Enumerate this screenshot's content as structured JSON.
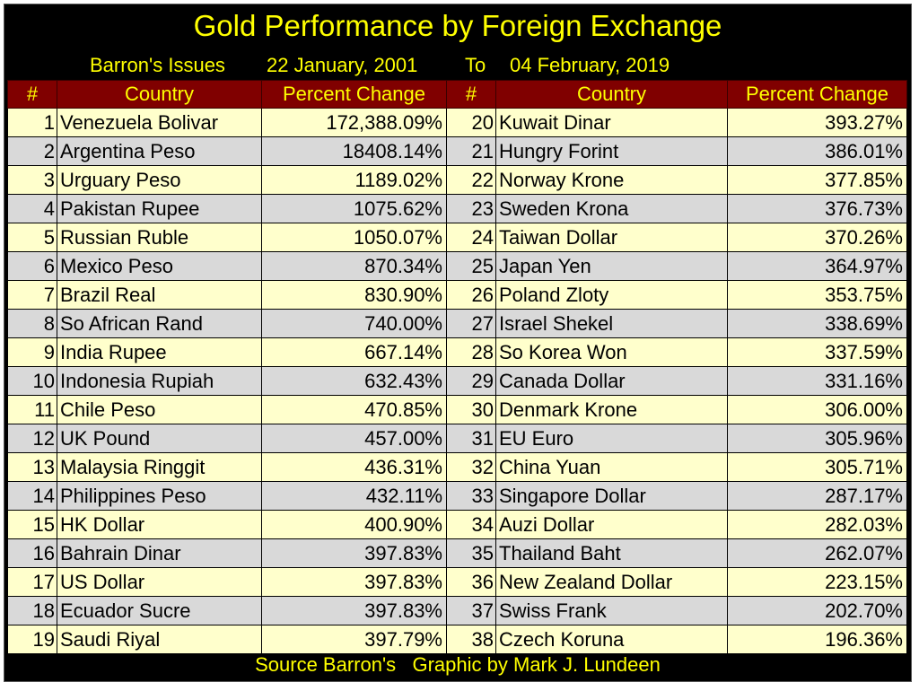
{
  "colors": {
    "background": "#000000",
    "title_text": "#ffff00",
    "header_bg": "#800000",
    "row_odd": "#ffffcc",
    "row_even": "#d9d9d9"
  },
  "chart_data": {
    "type": "table",
    "title": "Gold Performance by Foreign Exchange",
    "subtitle": {
      "prefix": "Barron's Issues",
      "start_date": "22 January, 2001",
      "to": "To",
      "end_date": "04 February, 2019"
    },
    "columns": [
      "#",
      "Country",
      "Percent Change",
      "#",
      "Country",
      "Percent Change"
    ],
    "left_rows": [
      {
        "rank": "1",
        "country": "Venezuela Bolivar",
        "change": "172,388.09%"
      },
      {
        "rank": "2",
        "country": "Argentina Peso",
        "change": "18408.14%"
      },
      {
        "rank": "3",
        "country": "Urguary Peso",
        "change": "1189.02%"
      },
      {
        "rank": "4",
        "country": "Pakistan Rupee",
        "change": "1075.62%"
      },
      {
        "rank": "5",
        "country": "Russian Ruble",
        "change": "1050.07%"
      },
      {
        "rank": "6",
        "country": "Mexico Peso",
        "change": "870.34%"
      },
      {
        "rank": "7",
        "country": "Brazil Real",
        "change": "830.90%"
      },
      {
        "rank": "8",
        "country": "So African Rand",
        "change": "740.00%"
      },
      {
        "rank": "9",
        "country": "India Rupee",
        "change": "667.14%"
      },
      {
        "rank": "10",
        "country": "Indonesia Rupiah",
        "change": "632.43%"
      },
      {
        "rank": "11",
        "country": "Chile Peso",
        "change": "470.85%"
      },
      {
        "rank": "12",
        "country": "UK Pound",
        "change": "457.00%"
      },
      {
        "rank": "13",
        "country": "Malaysia Ringgit",
        "change": "436.31%"
      },
      {
        "rank": "14",
        "country": "Philippines Peso",
        "change": "432.11%"
      },
      {
        "rank": "15",
        "country": "HK Dollar",
        "change": "400.90%"
      },
      {
        "rank": "16",
        "country": "Bahrain Dinar",
        "change": "397.83%"
      },
      {
        "rank": "17",
        "country": "US Dollar",
        "change": "397.83%"
      },
      {
        "rank": "18",
        "country": "Ecuador Sucre",
        "change": "397.83%"
      },
      {
        "rank": "19",
        "country": "Saudi Riyal",
        "change": "397.79%"
      }
    ],
    "right_rows": [
      {
        "rank": "20",
        "country": "Kuwait Dinar",
        "change": "393.27%"
      },
      {
        "rank": "21",
        "country": "Hungry Forint",
        "change": "386.01%"
      },
      {
        "rank": "22",
        "country": "Norway Krone",
        "change": "377.85%"
      },
      {
        "rank": "23",
        "country": "Sweden Krona",
        "change": "376.73%"
      },
      {
        "rank": "24",
        "country": "Taiwan Dollar",
        "change": "370.26%"
      },
      {
        "rank": "25",
        "country": "Japan Yen",
        "change": "364.97%"
      },
      {
        "rank": "26",
        "country": "Poland Zloty",
        "change": "353.75%"
      },
      {
        "rank": "27",
        "country": "Israel Shekel",
        "change": "338.69%"
      },
      {
        "rank": "28",
        "country": "So Korea Won",
        "change": "337.59%"
      },
      {
        "rank": "29",
        "country": "Canada Dollar",
        "change": "331.16%"
      },
      {
        "rank": "30",
        "country": "Denmark Krone",
        "change": "306.00%"
      },
      {
        "rank": "31",
        "country": "EU Euro",
        "change": "305.96%"
      },
      {
        "rank": "32",
        "country": "China Yuan",
        "change": "305.71%"
      },
      {
        "rank": "33",
        "country": "Singapore Dollar",
        "change": "287.17%"
      },
      {
        "rank": "34",
        "country": "Auzi Dollar",
        "change": "282.03%"
      },
      {
        "rank": "35",
        "country": "Thailand Baht",
        "change": "262.07%"
      },
      {
        "rank": "36",
        "country": "New Zealand Dollar",
        "change": "223.15%"
      },
      {
        "rank": "37",
        "country": "Swiss Frank",
        "change": "202.70%"
      },
      {
        "rank": "38",
        "country": "Czech Koruna",
        "change": "196.36%"
      }
    ],
    "footer": "Source Barron's   Graphic by Mark J. Lundeen"
  }
}
